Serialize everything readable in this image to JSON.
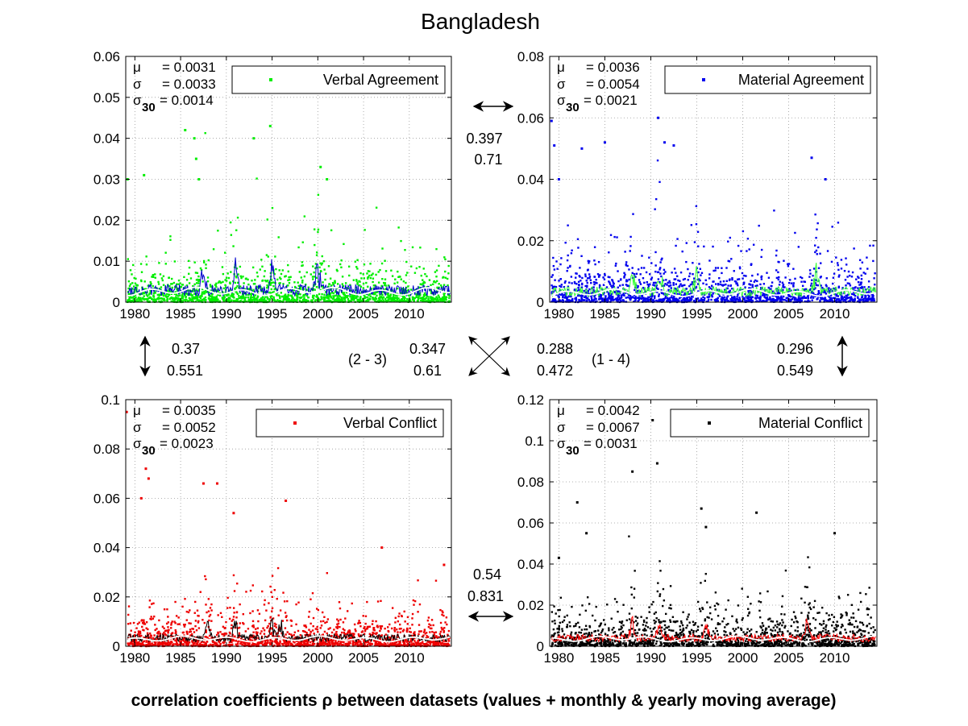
{
  "title": "Bangladesh",
  "footer": "correlation coefficients ρ between datasets (values + monthly & yearly moving average)",
  "chart_data": [
    {
      "type": "scatter",
      "legend": "Verbal Agreement",
      "legend_position": "top-right",
      "color": "#00ee00",
      "stats": {
        "mu": "= 0.0031",
        "sigma": "= 0.0033",
        "sigma30": "= 0.0014"
      },
      "xlim": [
        1979,
        2014.6
      ],
      "ylim": [
        0,
        0.06
      ],
      "xticks": [
        "1980",
        "1985",
        "1990",
        "1995",
        "2000",
        "2005",
        "2010"
      ],
      "yticks": [
        "0",
        "0.01",
        "0.02",
        "0.03",
        "0.04",
        "0.05",
        "0.06"
      ],
      "grid": true,
      "baseline": 0.0031,
      "spread": 0.0033,
      "peak_years": [
        1987.5,
        1991,
        1995,
        2000
      ],
      "outliers": [
        [
          1979.2,
          0.03
        ],
        [
          1981,
          0.031
        ],
        [
          1985.5,
          0.042
        ],
        [
          1986.5,
          0.04
        ],
        [
          1986.7,
          0.035
        ],
        [
          1993,
          0.04
        ],
        [
          1994.8,
          0.043
        ],
        [
          2000.3,
          0.033
        ],
        [
          1987,
          0.03
        ],
        [
          2001,
          0.03
        ]
      ]
    },
    {
      "type": "scatter",
      "legend": "Material Agreement",
      "legend_position": "top-right",
      "color": "#0000ee",
      "stats": {
        "mu": "= 0.0036",
        "sigma": "= 0.0054",
        "sigma30": "= 0.0021"
      },
      "xlim": [
        1979,
        2014.6
      ],
      "ylim": [
        0,
        0.08
      ],
      "xticks": [
        "1980",
        "1985",
        "1990",
        "1995",
        "2000",
        "2005",
        "2010"
      ],
      "yticks": [
        "0",
        "0.02",
        "0.04",
        "0.06",
        "0.08"
      ],
      "grid": true,
      "baseline": 0.0036,
      "spread": 0.0054,
      "peak_years": [
        1988,
        1991,
        1995,
        2008
      ],
      "outliers": [
        [
          1979.2,
          0.059
        ],
        [
          1979.5,
          0.051
        ],
        [
          1980,
          0.04
        ],
        [
          1982.5,
          0.05
        ],
        [
          1985,
          0.052
        ],
        [
          1990.8,
          0.06
        ],
        [
          1991.5,
          0.052
        ],
        [
          1992.5,
          0.051
        ],
        [
          2007.5,
          0.047
        ],
        [
          2009,
          0.04
        ]
      ]
    },
    {
      "type": "scatter",
      "legend": "Verbal Conflict",
      "legend_position": "top-right",
      "color": "#ee0000",
      "stats": {
        "mu": "= 0.0035",
        "sigma": "= 0.0052",
        "sigma30": "= 0.0023"
      },
      "xlim": [
        1979,
        2014.6
      ],
      "ylim": [
        0,
        0.1
      ],
      "xticks": [
        "1980",
        "1985",
        "1990",
        "1995",
        "2000",
        "2005",
        "2010"
      ],
      "yticks": [
        "0",
        "0.02",
        "0.04",
        "0.06",
        "0.08",
        "0.1"
      ],
      "grid": true,
      "baseline": 0.0035,
      "spread": 0.0052,
      "peak_years": [
        1988,
        1991,
        1995,
        1996
      ],
      "outliers": [
        [
          1979.1,
          0.095
        ],
        [
          1981.2,
          0.072
        ],
        [
          1980.7,
          0.06
        ],
        [
          1981.5,
          0.068
        ],
        [
          1987.5,
          0.066
        ],
        [
          1989,
          0.066
        ],
        [
          1990.8,
          0.054
        ],
        [
          1996.5,
          0.059
        ],
        [
          2007,
          0.04
        ],
        [
          2013.8,
          0.033
        ]
      ]
    },
    {
      "type": "scatter",
      "legend": "Material Conflict",
      "legend_position": "top-right",
      "color": "#000000",
      "stats": {
        "mu": "= 0.0042",
        "sigma": "= 0.0067",
        "sigma30": "= 0.0031"
      },
      "xlim": [
        1979,
        2014.6
      ],
      "ylim": [
        0,
        0.12
      ],
      "xticks": [
        "1980",
        "1985",
        "1990",
        "1995",
        "2000",
        "2005",
        "2010"
      ],
      "yticks": [
        "0",
        "0.02",
        "0.04",
        "0.06",
        "0.08",
        "0.1",
        "0.12"
      ],
      "grid": true,
      "baseline": 0.0042,
      "spread": 0.0067,
      "peak_years": [
        1988,
        1991,
        1996,
        2007
      ],
      "outliers": [
        [
          1990.2,
          0.11
        ],
        [
          1990.7,
          0.089
        ],
        [
          1988,
          0.085
        ],
        [
          1982,
          0.07
        ],
        [
          1995.5,
          0.067
        ],
        [
          2001.5,
          0.065
        ],
        [
          1996,
          0.058
        ],
        [
          2010,
          0.055
        ],
        [
          1983,
          0.055
        ],
        [
          1980,
          0.043
        ]
      ]
    }
  ],
  "correlations": {
    "top": {
      "value": "0.397",
      "smoothed": "0.71"
    },
    "left": {
      "value": "0.37",
      "smoothed": "0.551"
    },
    "diag23": {
      "label": "(2 - 3)",
      "value": "0.347",
      "smoothed": "0.61"
    },
    "diag14": {
      "label": "(1 - 4)",
      "value": "0.288",
      "smoothed": "0.472"
    },
    "right": {
      "value": "0.296",
      "smoothed": "0.549"
    },
    "bottom": {
      "value": "0.54",
      "smoothed": "0.831"
    }
  }
}
